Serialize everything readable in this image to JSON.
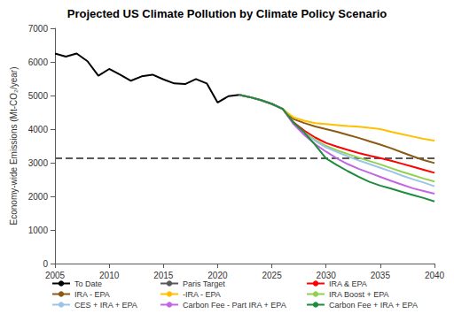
{
  "chart_data": {
    "type": "line",
    "title": "Projected US Climate Pollution by Climate Policy Scenario",
    "y_label": "Economy-wide Emissions (Mt-CO₂/year)",
    "x": [
      2005,
      2006,
      2007,
      2008,
      2009,
      2010,
      2011,
      2012,
      2013,
      2014,
      2015,
      2016,
      2017,
      2018,
      2019,
      2020,
      2021,
      2022,
      2023,
      2024,
      2025,
      2026,
      2027,
      2028,
      2029,
      2030,
      2031,
      2032,
      2033,
      2034,
      2035,
      2036,
      2037,
      2038,
      2039,
      2040
    ],
    "xlim": [
      2005,
      2040
    ],
    "xticks": [
      2005,
      2010,
      2015,
      2020,
      2025,
      2030,
      2035,
      2040
    ],
    "ylim": [
      0,
      7000
    ],
    "yticks": [
      0,
      1000,
      2000,
      3000,
      4000,
      5000,
      6000,
      7000
    ],
    "grid": false,
    "legend": "bottom",
    "marker": "none",
    "series": [
      {
        "name": "To Date",
        "color": "#000000",
        "line_style": "solid",
        "values": [
          6250,
          6160,
          6250,
          6020,
          5590,
          5790,
          5620,
          5440,
          5570,
          5620,
          5480,
          5360,
          5340,
          5490,
          5360,
          4790,
          4980,
          5020,
          null,
          null,
          null,
          null,
          null,
          null,
          null,
          null,
          null,
          null,
          null,
          null,
          null,
          null,
          null,
          null,
          null,
          null
        ]
      },
      {
        "name": "Paris Target",
        "color": "#595959",
        "line_style": "dashed",
        "values": [
          3130,
          3130,
          3130,
          3130,
          3130,
          3130,
          3130,
          3130,
          3130,
          3130,
          3130,
          3130,
          3130,
          3130,
          3130,
          3130,
          3130,
          3130,
          3130,
          3130,
          3130,
          3130,
          3130,
          3130,
          3130,
          3130,
          3130,
          3130,
          3130,
          3130,
          3130,
          3130,
          3130,
          3130,
          3130,
          3130
        ]
      },
      {
        "name": "IRA & EPA",
        "color": "#ff0000",
        "line_style": "solid",
        "values": [
          null,
          null,
          null,
          null,
          null,
          null,
          null,
          null,
          null,
          null,
          null,
          null,
          null,
          null,
          null,
          null,
          null,
          5020,
          4950,
          4860,
          4750,
          4600,
          4200,
          3950,
          3750,
          3590,
          3480,
          3380,
          3290,
          3210,
          3140,
          3060,
          2970,
          2880,
          2790,
          2700
        ]
      },
      {
        "name": "IRA - EPA",
        "color": "#8b5a14",
        "line_style": "solid",
        "values": [
          null,
          null,
          null,
          null,
          null,
          null,
          null,
          null,
          null,
          null,
          null,
          null,
          null,
          null,
          null,
          null,
          null,
          5020,
          4950,
          4860,
          4750,
          4600,
          4300,
          4180,
          4080,
          4000,
          3920,
          3830,
          3740,
          3640,
          3540,
          3430,
          3310,
          3190,
          3080,
          2990
        ]
      },
      {
        "name": "-IRA - EPA",
        "color": "#ffc000",
        "line_style": "solid",
        "values": [
          null,
          null,
          null,
          null,
          null,
          null,
          null,
          null,
          null,
          null,
          null,
          null,
          null,
          null,
          null,
          null,
          null,
          5020,
          4950,
          4860,
          4750,
          4600,
          4350,
          4250,
          4180,
          4150,
          4120,
          4090,
          4070,
          4040,
          4000,
          3920,
          3850,
          3780,
          3710,
          3660
        ]
      },
      {
        "name": "IRA Boost + EPA",
        "color": "#92d050",
        "line_style": "solid",
        "values": [
          null,
          null,
          null,
          null,
          null,
          null,
          null,
          null,
          null,
          null,
          null,
          null,
          null,
          null,
          null,
          null,
          null,
          5020,
          4950,
          4860,
          4750,
          4600,
          4180,
          3900,
          3680,
          3500,
          3370,
          3260,
          3150,
          3050,
          2950,
          2840,
          2730,
          2630,
          2530,
          2440
        ]
      },
      {
        "name": "CES + IRA + EPA",
        "color": "#9dc3e6",
        "line_style": "solid",
        "values": [
          null,
          null,
          null,
          null,
          null,
          null,
          null,
          null,
          null,
          null,
          null,
          null,
          null,
          null,
          null,
          null,
          null,
          5020,
          4950,
          4860,
          4750,
          4600,
          4170,
          3880,
          3650,
          3460,
          3320,
          3190,
          3070,
          2960,
          2850,
          2740,
          2620,
          2510,
          2410,
          2300
        ]
      },
      {
        "name": "Carbon Fee - Part IRA + EPA",
        "color": "#c266e8",
        "line_style": "solid",
        "values": [
          null,
          null,
          null,
          null,
          null,
          null,
          null,
          null,
          null,
          null,
          null,
          null,
          null,
          null,
          null,
          null,
          null,
          5020,
          4950,
          4860,
          4750,
          4600,
          4150,
          3820,
          3550,
          3330,
          3130,
          2960,
          2820,
          2700,
          2580,
          2460,
          2350,
          2240,
          2160,
          2080
        ]
      },
      {
        "name": "Carbon Fee + IRA + EPA",
        "color": "#1e8c3a",
        "line_style": "solid",
        "values": [
          null,
          null,
          null,
          null,
          null,
          null,
          null,
          null,
          null,
          null,
          null,
          null,
          null,
          null,
          null,
          null,
          null,
          5020,
          4950,
          4860,
          4750,
          4600,
          4200,
          3900,
          3530,
          3130,
          2930,
          2750,
          2580,
          2430,
          2320,
          2230,
          2130,
          2040,
          1950,
          1850
        ]
      }
    ]
  }
}
